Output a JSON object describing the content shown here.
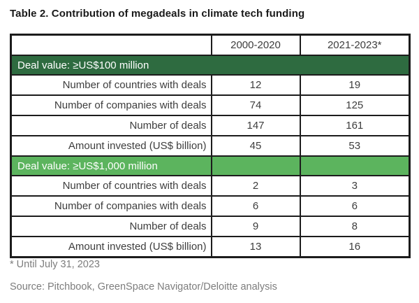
{
  "page": {
    "title": "Table 2. Contribution of megadeals in climate tech funding",
    "footnote": "* Until July 31, 2023",
    "source": "Source: Pitchbook, GreenSpace Navigator/Deloitte analysis"
  },
  "table": {
    "columns": [
      "",
      "2000-2020",
      "2021-2023*"
    ],
    "sections": [
      {
        "header": "Deal value: ≥US$100 million",
        "rows": [
          {
            "label": "Number of countries with deals",
            "values": [
              "12",
              "19"
            ]
          },
          {
            "label": "Number of companies with deals",
            "values": [
              "74",
              "125"
            ]
          },
          {
            "label": "Number of deals",
            "values": [
              "147",
              "161"
            ]
          },
          {
            "label": "Amount invested (US$ billion)",
            "values": [
              "45",
              "53"
            ]
          }
        ]
      },
      {
        "header": "Deal value: ≥US$1,000 million",
        "rows": [
          {
            "label": "Number of countries with deals",
            "values": [
              "2",
              "3"
            ]
          },
          {
            "label": "Number of companies with deals",
            "values": [
              "6",
              "6"
            ]
          },
          {
            "label": "Number of deals",
            "values": [
              "9",
              "8"
            ]
          },
          {
            "label": "Amount invested (US$ billion)",
            "values": [
              "13",
              "16"
            ]
          }
        ]
      }
    ]
  },
  "chart_data": {
    "type": "table",
    "title": "Table 2. Contribution of megadeals in climate tech funding",
    "columns": [
      "",
      "2000-2020",
      "2021-2023*"
    ],
    "rows": [
      [
        "Deal value: ≥US$100 million",
        "",
        ""
      ],
      [
        "Number of countries with deals",
        12,
        19
      ],
      [
        "Number of companies with deals",
        74,
        125
      ],
      [
        "Number of deals",
        147,
        161
      ],
      [
        "Amount invested (US$ billion)",
        45,
        53
      ],
      [
        "Deal value: ≥US$1,000 million",
        "",
        ""
      ],
      [
        "Number of countries with deals",
        2,
        3
      ],
      [
        "Number of companies with deals",
        6,
        6
      ],
      [
        "Number of deals",
        9,
        8
      ],
      [
        "Amount invested (US$ billion)",
        13,
        16
      ]
    ]
  },
  "colors": {
    "section_dark_green": "#2e6b40",
    "section_light_green": "#5cb45e",
    "border": "#1c1c1c",
    "cell_text": "#3d3d3d",
    "muted_text": "#7d7d7d",
    "title_text": "#1a1a1a"
  }
}
